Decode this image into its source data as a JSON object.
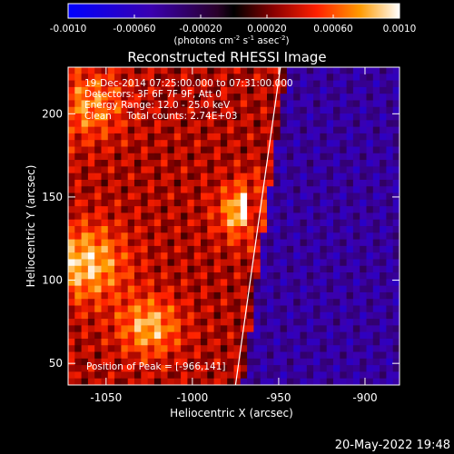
{
  "colorbar": {
    "ticks": [
      "-0.0010",
      "-0.00060",
      "-0.00020",
      "0.00020",
      "0.00060",
      "0.0010"
    ],
    "units_main": "(photons cm",
    "units_sup1": "-2",
    "units_mid": " s",
    "units_sup2": "-1",
    "units_mid2": " asec",
    "units_sup3": "-2",
    "units_end": ")",
    "min": -0.001,
    "max": 0.001
  },
  "chart_data": {
    "type": "heatmap",
    "title": "Reconstructed RHESSI Image",
    "xlabel": "Heliocentric X (arcsec)",
    "ylabel": "Heliocentric Y (arcsec)",
    "xlim": [
      -1072,
      -880
    ],
    "ylim": [
      37,
      228
    ],
    "x_ticks": [
      -1050,
      -1000,
      -950,
      -900
    ],
    "y_ticks": [
      50,
      100,
      150,
      200
    ],
    "annotations": [
      "19-Dec-2014 07:25:00.000 to 07:31:00.000",
      "Detectors: 3F 6F 7F 9F, Att 0",
      "Energy Range: 12.0 - 25.0 keV",
      "Clean     Total counts: 2.74E+03"
    ],
    "peak_label": "Position of Peak = [-966,141]",
    "peak": {
      "x": -966,
      "y": 141
    },
    "limb_line": [
      [
        -975,
        37
      ],
      [
        -949,
        228
      ]
    ]
  },
  "footer_date": "20-May-2022 19:48"
}
